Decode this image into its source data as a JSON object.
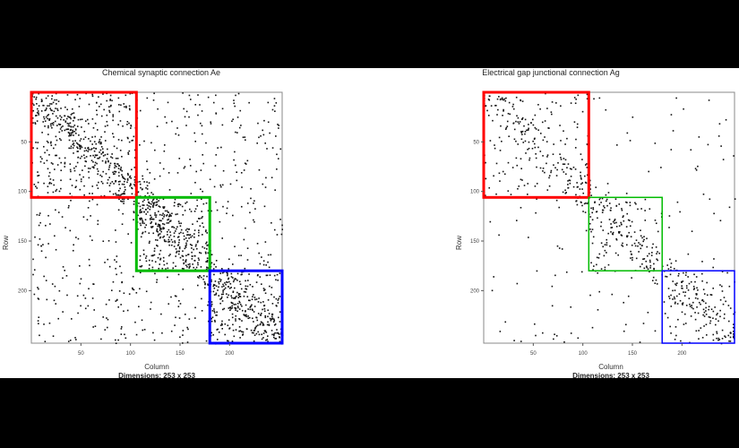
{
  "chart_data": [
    {
      "type": "heatmap",
      "subtype": "sparse-matrix",
      "title": "Chemical synaptic connection Ae",
      "xlabel": "Column",
      "ylabel": "Row",
      "dimensions_label": "Dimensions: 253 x 253",
      "xlim": [
        0,
        253
      ],
      "ylim": [
        0,
        253
      ],
      "xticks": [
        50,
        100,
        150,
        200
      ],
      "yticks": [
        50,
        100,
        150,
        200
      ],
      "blocks": [
        {
          "name": "red",
          "color": "#ff0000",
          "range": [
            0,
            106
          ],
          "stroke": 3
        },
        {
          "name": "green",
          "color": "#00bb00",
          "range": [
            106,
            180
          ],
          "stroke": 3
        },
        {
          "name": "blue",
          "color": "#0000ff",
          "range": [
            180,
            253
          ],
          "stroke": 3
        }
      ]
    },
    {
      "type": "heatmap",
      "subtype": "sparse-matrix",
      "title": "Electrical gap junctional connection Ag",
      "xlabel": "Column",
      "ylabel": "Row",
      "dimensions_label": "Dimensions: 253 x 253",
      "xlim": [
        0,
        253
      ],
      "ylim": [
        0,
        253
      ],
      "xticks": [
        50,
        100,
        150,
        200
      ],
      "yticks": [
        50,
        100,
        150,
        200
      ],
      "blocks": [
        {
          "name": "red",
          "color": "#ff0000",
          "range": [
            0,
            106
          ],
          "stroke": 3
        },
        {
          "name": "green",
          "color": "#00bb00",
          "range": [
            106,
            180
          ],
          "stroke": 1.5
        },
        {
          "name": "blue",
          "color": "#0000ff",
          "range": [
            180,
            253
          ],
          "stroke": 1.5
        }
      ]
    }
  ]
}
